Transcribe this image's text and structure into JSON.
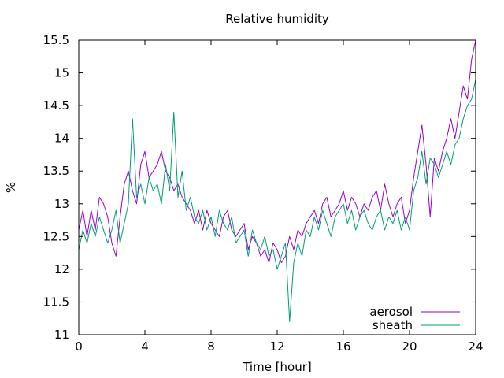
{
  "chart_data": {
    "type": "line",
    "title": "Relative humidity",
    "xlabel": "Time [hour]",
    "ylabel": "%",
    "xlim": [
      0,
      24
    ],
    "ylim": [
      11,
      15.5
    ],
    "xticks": [
      0,
      4,
      8,
      12,
      16,
      20,
      24
    ],
    "yticks": [
      11,
      11.5,
      12,
      12.5,
      13,
      13.5,
      14,
      14.5,
      15,
      15.5
    ],
    "grid": false,
    "legend_position": "bottom-right",
    "series": [
      {
        "name": "aerosol",
        "color": "#9400d3",
        "x": [
          0,
          0.25,
          0.5,
          0.75,
          1,
          1.25,
          1.5,
          1.75,
          2,
          2.25,
          2.5,
          2.75,
          3,
          3.25,
          3.5,
          3.75,
          4,
          4.25,
          4.5,
          4.75,
          5,
          5.25,
          5.5,
          5.75,
          6,
          6.25,
          6.5,
          6.75,
          7,
          7.25,
          7.5,
          7.75,
          8,
          8.25,
          8.5,
          8.75,
          9,
          9.25,
          9.5,
          9.75,
          10,
          10.25,
          10.5,
          10.75,
          11,
          11.25,
          11.5,
          11.75,
          12,
          12.25,
          12.5,
          12.75,
          13,
          13.25,
          13.5,
          13.75,
          14,
          14.25,
          14.5,
          14.75,
          15,
          15.25,
          15.5,
          15.75,
          16,
          16.25,
          16.5,
          16.75,
          17,
          17.25,
          17.5,
          17.75,
          18,
          18.25,
          18.5,
          18.75,
          19,
          19.25,
          19.5,
          19.75,
          20,
          20.25,
          20.5,
          20.75,
          21,
          21.25,
          21.5,
          21.75,
          22,
          22.25,
          22.5,
          22.75,
          23,
          23.25,
          23.5,
          23.75,
          24
        ],
        "values": [
          12.6,
          12.9,
          12.5,
          12.9,
          12.6,
          13.1,
          13.0,
          12.8,
          12.4,
          12.2,
          12.8,
          13.3,
          13.5,
          13.2,
          13.0,
          13.6,
          13.8,
          13.4,
          13.5,
          13.6,
          13.8,
          13.5,
          13.4,
          13.2,
          13.3,
          13.1,
          13.0,
          12.9,
          12.7,
          12.9,
          12.6,
          12.9,
          12.7,
          12.6,
          12.5,
          12.8,
          12.9,
          12.6,
          12.5,
          12.6,
          12.7,
          12.3,
          12.5,
          12.4,
          12.2,
          12.3,
          12.1,
          12.4,
          12.3,
          12.1,
          12.2,
          12.5,
          12.3,
          12.6,
          12.5,
          12.7,
          12.8,
          12.9,
          12.7,
          13.0,
          13.1,
          12.8,
          12.9,
          13.0,
          13.2,
          12.9,
          13.1,
          13.0,
          12.8,
          13.0,
          12.9,
          13.1,
          13.2,
          12.9,
          13.3,
          13.0,
          12.8,
          13.0,
          13.1,
          12.7,
          12.9,
          13.4,
          13.8,
          14.2,
          13.6,
          12.8,
          13.7,
          13.5,
          13.8,
          14.0,
          14.3,
          14.0,
          14.4,
          14.8,
          14.6,
          15.2,
          15.5
        ]
      },
      {
        "name": "sheath",
        "color": "#009e73",
        "x": [
          0,
          0.25,
          0.5,
          0.75,
          1,
          1.25,
          1.5,
          1.75,
          2,
          2.25,
          2.5,
          2.75,
          3,
          3.25,
          3.5,
          3.75,
          4,
          4.25,
          4.5,
          4.75,
          5,
          5.25,
          5.5,
          5.75,
          6,
          6.25,
          6.5,
          6.75,
          7,
          7.25,
          7.5,
          7.75,
          8,
          8.25,
          8.5,
          8.75,
          9,
          9.25,
          9.5,
          9.75,
          10,
          10.25,
          10.5,
          10.75,
          11,
          11.25,
          11.5,
          11.75,
          12,
          12.25,
          12.5,
          12.75,
          13,
          13.25,
          13.5,
          13.75,
          14,
          14.25,
          14.5,
          14.75,
          15,
          15.25,
          15.5,
          15.75,
          16,
          16.25,
          16.5,
          16.75,
          17,
          17.25,
          17.5,
          17.75,
          18,
          18.25,
          18.5,
          18.75,
          19,
          19.25,
          19.5,
          19.75,
          20,
          20.25,
          20.5,
          20.75,
          21,
          21.25,
          21.5,
          21.75,
          22,
          22.25,
          22.5,
          22.75,
          23,
          23.25,
          23.5,
          23.75,
          24
        ],
        "values": [
          12.3,
          12.6,
          12.4,
          12.7,
          12.5,
          12.8,
          12.6,
          12.4,
          12.6,
          12.9,
          12.4,
          12.7,
          13.0,
          14.3,
          13.1,
          13.3,
          13.0,
          13.4,
          13.2,
          13.3,
          13.0,
          13.6,
          13.2,
          14.4,
          13.1,
          13.5,
          12.9,
          13.1,
          12.8,
          12.7,
          12.9,
          12.6,
          12.8,
          12.5,
          12.9,
          12.7,
          12.6,
          12.8,
          12.4,
          12.5,
          12.6,
          12.2,
          12.6,
          12.4,
          12.3,
          12.5,
          12.2,
          12.3,
          12.0,
          12.2,
          12.4,
          11.2,
          12.1,
          12.4,
          12.2,
          12.6,
          12.5,
          12.8,
          12.6,
          12.9,
          12.7,
          12.5,
          12.8,
          12.9,
          13.0,
          12.7,
          12.9,
          12.6,
          12.8,
          12.9,
          12.7,
          12.6,
          12.8,
          12.9,
          12.6,
          12.8,
          12.7,
          12.9,
          12.6,
          12.8,
          12.6,
          13.2,
          13.4,
          13.8,
          13.3,
          13.7,
          13.6,
          13.4,
          13.6,
          13.8,
          13.6,
          13.9,
          14.0,
          14.3,
          14.5,
          14.6,
          14.9
        ]
      }
    ]
  }
}
